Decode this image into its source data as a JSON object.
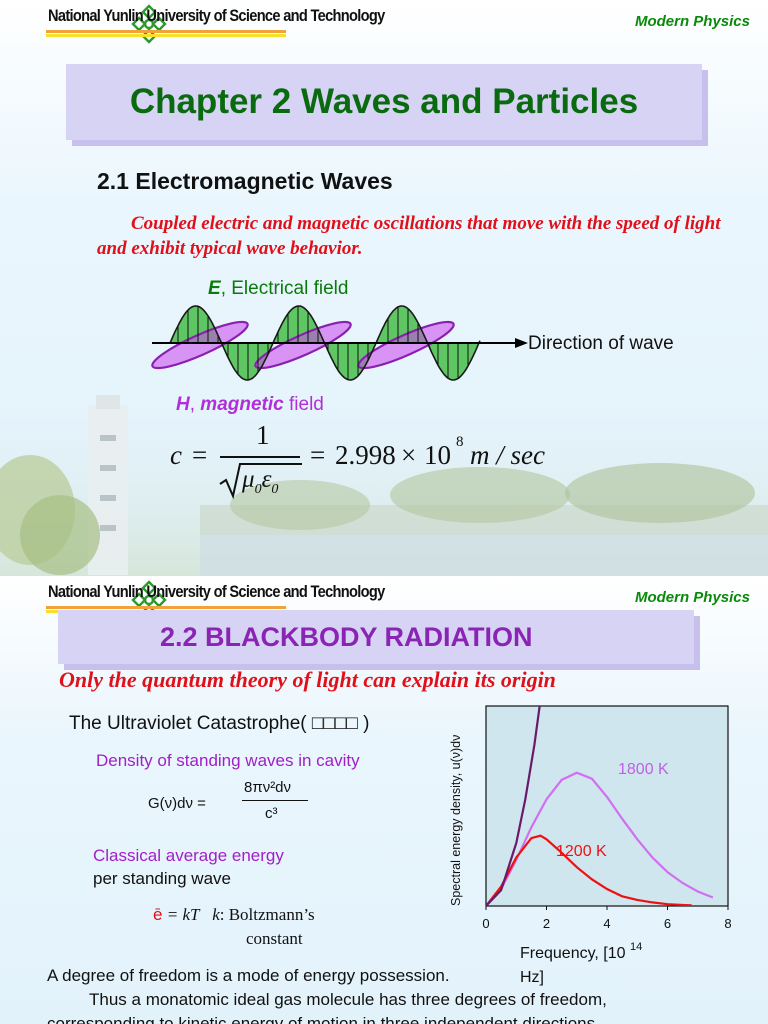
{
  "slide1": {
    "university": "National Yunlin University of Science and Technology",
    "course": "Modern Physics",
    "title": "Chapter 2 Waves and Particles",
    "section": "2.1 Electromagnetic Waves",
    "description": "Coupled electric and magnetic oscillations that move with the speed of light   and exhibit typical wave behavior.",
    "e_symbol": "E",
    "e_label": ", Electrical field",
    "h_symbol": "H",
    "h_mid": ", ",
    "h_word": "magnetic",
    "h_label": " field",
    "direction_label": "Direction of wave",
    "equation": {
      "lhs": "c",
      "numerator": "1",
      "denominator": "μ0ε0",
      "value": "2.998",
      "times": "×",
      "base": "10",
      "exponent": "8",
      "unit": "m / sec"
    }
  },
  "slide2": {
    "university": "National Yunlin University of Science and Technology",
    "course": "Modern Physics",
    "title": "2.2 BLACKBODY RADIATION",
    "subtitle": "Only the quantum theory of light can explain its origin",
    "uv_catastrophe": "The Ultraviolet Catastrophe( □□□□ )",
    "density_label": "Density of standing waves in cavity",
    "g_formula_lhs": "G(ν)dν =",
    "g_formula_num": "8πν²dν",
    "g_formula_den": "c³",
    "classical_label": "Classical average energy",
    "per_standing_wave": "per standing wave",
    "ebar": "ē",
    "ebar_eq": "= kT",
    "k_sym": "k",
    "k_desc": ": Boltzmann’s",
    "k_desc2": "constant",
    "degree_text": "A degree of freedom is a mode of energy possession.",
    "thus_text": "Thus a monatomic ideal gas molecule has three degrees of freedom,",
    "corr_text": "corresponding to kinetic energy of motion in three independent directions."
  },
  "colors": {
    "title_green": "#0a6a10",
    "course_green": "#0a8a0a",
    "red": "#e0101a",
    "purple": "#a020c8",
    "heading_purple": "#8a24b4",
    "e_field": "#3cbb3c",
    "h_field": "#cc44ee"
  },
  "chart_data": {
    "type": "line",
    "ylabel": "Spectral energy density, u(ν)dν",
    "xlabel_main": "Frequency, [10",
    "xlabel_exp": "14",
    "xlabel_end": "Hz]",
    "xlim": [
      0,
      8
    ],
    "x_ticks": [
      "0",
      "2",
      "4",
      "6",
      "8"
    ],
    "series": [
      {
        "name": "1800 K",
        "color": "#d070f0",
        "x": [
          0,
          0.5,
          1.0,
          1.5,
          2.0,
          2.5,
          3.0,
          3.5,
          4.0,
          4.5,
          5.0,
          5.5,
          6.0,
          6.5,
          7.0,
          7.5
        ],
        "y": [
          0,
          0.14,
          0.38,
          0.65,
          0.88,
          1.04,
          1.1,
          1.05,
          0.9,
          0.72,
          0.55,
          0.4,
          0.28,
          0.19,
          0.12,
          0.07
        ]
      },
      {
        "name": "1200 K",
        "color": "#ee1111",
        "x": [
          0,
          0.5,
          1.0,
          1.5,
          1.8,
          2.0,
          2.5,
          3.0,
          3.5,
          4.0,
          4.5,
          5.0,
          5.5,
          6.0,
          6.5,
          6.8
        ],
        "y": [
          0,
          0.16,
          0.4,
          0.56,
          0.58,
          0.55,
          0.44,
          0.32,
          0.22,
          0.14,
          0.08,
          0.05,
          0.03,
          0.015,
          0.008,
          0.005
        ]
      },
      {
        "name": "",
        "color": "#6a1a6a",
        "x": [
          0,
          0.5,
          1.0,
          1.3,
          1.6,
          1.8
        ],
        "y": [
          0,
          0.13,
          0.52,
          0.88,
          1.33,
          1.7
        ]
      }
    ],
    "ylim": [
      0,
      1.65
    ]
  }
}
